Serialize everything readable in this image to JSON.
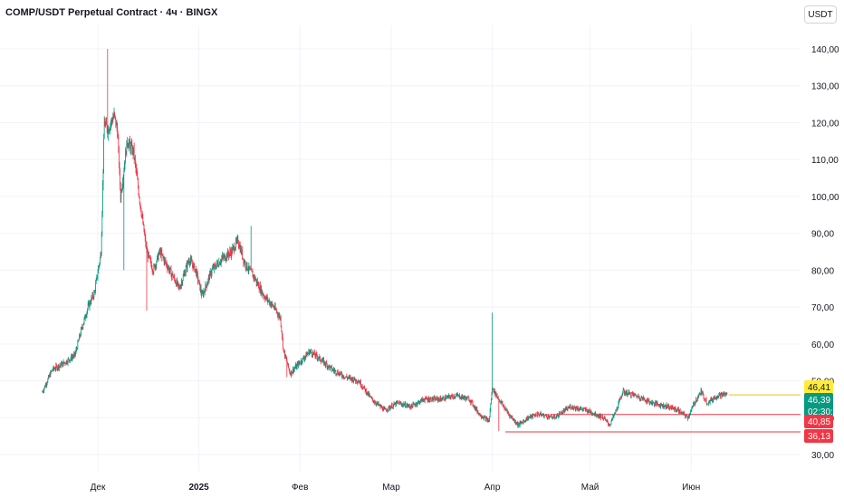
{
  "header": {
    "title": "COMP/USDT Perpetual Contract · 4ч · BINGX",
    "currency": "USDT"
  },
  "chart_data": {
    "type": "candlestick",
    "ylim": [
      25,
      150
    ],
    "y_ticks": [
      "30,00",
      "40,00",
      "50,00",
      "60,00",
      "70,00",
      "80,00",
      "90,00",
      "100,00",
      "110,00",
      "120,00",
      "130,00",
      "140,00"
    ],
    "y_tick_values": [
      30,
      40,
      50,
      60,
      70,
      80,
      90,
      100,
      110,
      120,
      130,
      140
    ],
    "x_ticks": [
      "Дек",
      "2025",
      "Фев",
      "Мар",
      "Апр",
      "Май",
      "Июн"
    ],
    "x_tick_days": [
      0,
      31,
      62,
      90,
      121,
      151,
      182
    ],
    "x_range_days": [
      -17,
      209
    ],
    "series_anchors": [
      {
        "day": -17,
        "price": 47
      },
      {
        "day": -14,
        "price": 53
      },
      {
        "day": -10,
        "price": 55
      },
      {
        "day": -7,
        "price": 57
      },
      {
        "day": -5,
        "price": 64
      },
      {
        "day": -3,
        "price": 70
      },
      {
        "day": -1,
        "price": 74
      },
      {
        "day": 1,
        "price": 85
      },
      {
        "day": 2,
        "price": 120
      },
      {
        "day": 3,
        "price": 118
      },
      {
        "day": 5,
        "price": 122
      },
      {
        "day": 6,
        "price": 118
      },
      {
        "day": 7,
        "price": 100
      },
      {
        "day": 9,
        "price": 115
      },
      {
        "day": 11,
        "price": 112
      },
      {
        "day": 13,
        "price": 98
      },
      {
        "day": 15,
        "price": 85
      },
      {
        "day": 17,
        "price": 80
      },
      {
        "day": 19,
        "price": 85
      },
      {
        "day": 22,
        "price": 80
      },
      {
        "day": 25,
        "price": 75
      },
      {
        "day": 28,
        "price": 83
      },
      {
        "day": 30,
        "price": 80
      },
      {
        "day": 32,
        "price": 73
      },
      {
        "day": 35,
        "price": 80
      },
      {
        "day": 38,
        "price": 83
      },
      {
        "day": 41,
        "price": 85
      },
      {
        "day": 43,
        "price": 88
      },
      {
        "day": 45,
        "price": 82
      },
      {
        "day": 48,
        "price": 78
      },
      {
        "day": 51,
        "price": 73
      },
      {
        "day": 54,
        "price": 70
      },
      {
        "day": 56,
        "price": 67
      },
      {
        "day": 57,
        "price": 58
      },
      {
        "day": 59,
        "price": 52
      },
      {
        "day": 62,
        "price": 55
      },
      {
        "day": 65,
        "price": 58
      },
      {
        "day": 68,
        "price": 56
      },
      {
        "day": 72,
        "price": 53
      },
      {
        "day": 76,
        "price": 51
      },
      {
        "day": 80,
        "price": 50
      },
      {
        "day": 84,
        "price": 45
      },
      {
        "day": 88,
        "price": 42
      },
      {
        "day": 92,
        "price": 44
      },
      {
        "day": 96,
        "price": 43
      },
      {
        "day": 100,
        "price": 45
      },
      {
        "day": 105,
        "price": 45
      },
      {
        "day": 110,
        "price": 46
      },
      {
        "day": 114,
        "price": 45
      },
      {
        "day": 117,
        "price": 41
      },
      {
        "day": 120,
        "price": 39
      },
      {
        "day": 121,
        "price": 48
      },
      {
        "day": 123,
        "price": 45
      },
      {
        "day": 126,
        "price": 41
      },
      {
        "day": 129,
        "price": 38
      },
      {
        "day": 132,
        "price": 40
      },
      {
        "day": 135,
        "price": 41
      },
      {
        "day": 140,
        "price": 40
      },
      {
        "day": 145,
        "price": 43
      },
      {
        "day": 150,
        "price": 42
      },
      {
        "day": 155,
        "price": 40
      },
      {
        "day": 157,
        "price": 38
      },
      {
        "day": 159,
        "price": 42
      },
      {
        "day": 161,
        "price": 47
      },
      {
        "day": 165,
        "price": 46
      },
      {
        "day": 170,
        "price": 44
      },
      {
        "day": 175,
        "price": 43
      },
      {
        "day": 178,
        "price": 42
      },
      {
        "day": 181,
        "price": 40
      },
      {
        "day": 183,
        "price": 44
      },
      {
        "day": 185,
        "price": 47
      },
      {
        "day": 187,
        "price": 44
      },
      {
        "day": 190,
        "price": 46
      },
      {
        "day": 193,
        "price": 46.4
      }
    ],
    "wick_extremes": [
      {
        "day": 3,
        "high": 140
      },
      {
        "day": 123,
        "low": 36.4
      },
      {
        "day": 121,
        "high": 68.5
      },
      {
        "day": 47,
        "high": 92
      },
      {
        "day": 15,
        "low": 69
      },
      {
        "day": 58,
        "low": 51
      },
      {
        "day": 8,
        "low": 80
      }
    ],
    "price_levels": [
      {
        "label": "40,85",
        "value": 40.85,
        "color": "#f23645",
        "start_day": 139
      },
      {
        "label": "36,13",
        "value": 36.13,
        "color": "#f23645",
        "start_day": 125
      }
    ],
    "last_price_line": {
      "value": 46.41,
      "color": "#ffeb3b"
    },
    "tags": [
      {
        "label": "46,41",
        "value": 46.41,
        "bg": "#ffeb3b",
        "fg": "#131722"
      },
      {
        "label": "46,39",
        "sub": "02:30:32",
        "value": 46.39,
        "bg": "#089981",
        "fg": "#ffffff"
      },
      {
        "label": "40,85",
        "value": 40.85,
        "bg": "#f23645",
        "fg": "#ffffff"
      },
      {
        "label": "36,13",
        "value": 36.13,
        "bg": "#f23645",
        "fg": "#ffffff"
      }
    ],
    "colors": {
      "up": "#089981",
      "down": "#f23645",
      "grid": "#f0f3fa"
    }
  }
}
